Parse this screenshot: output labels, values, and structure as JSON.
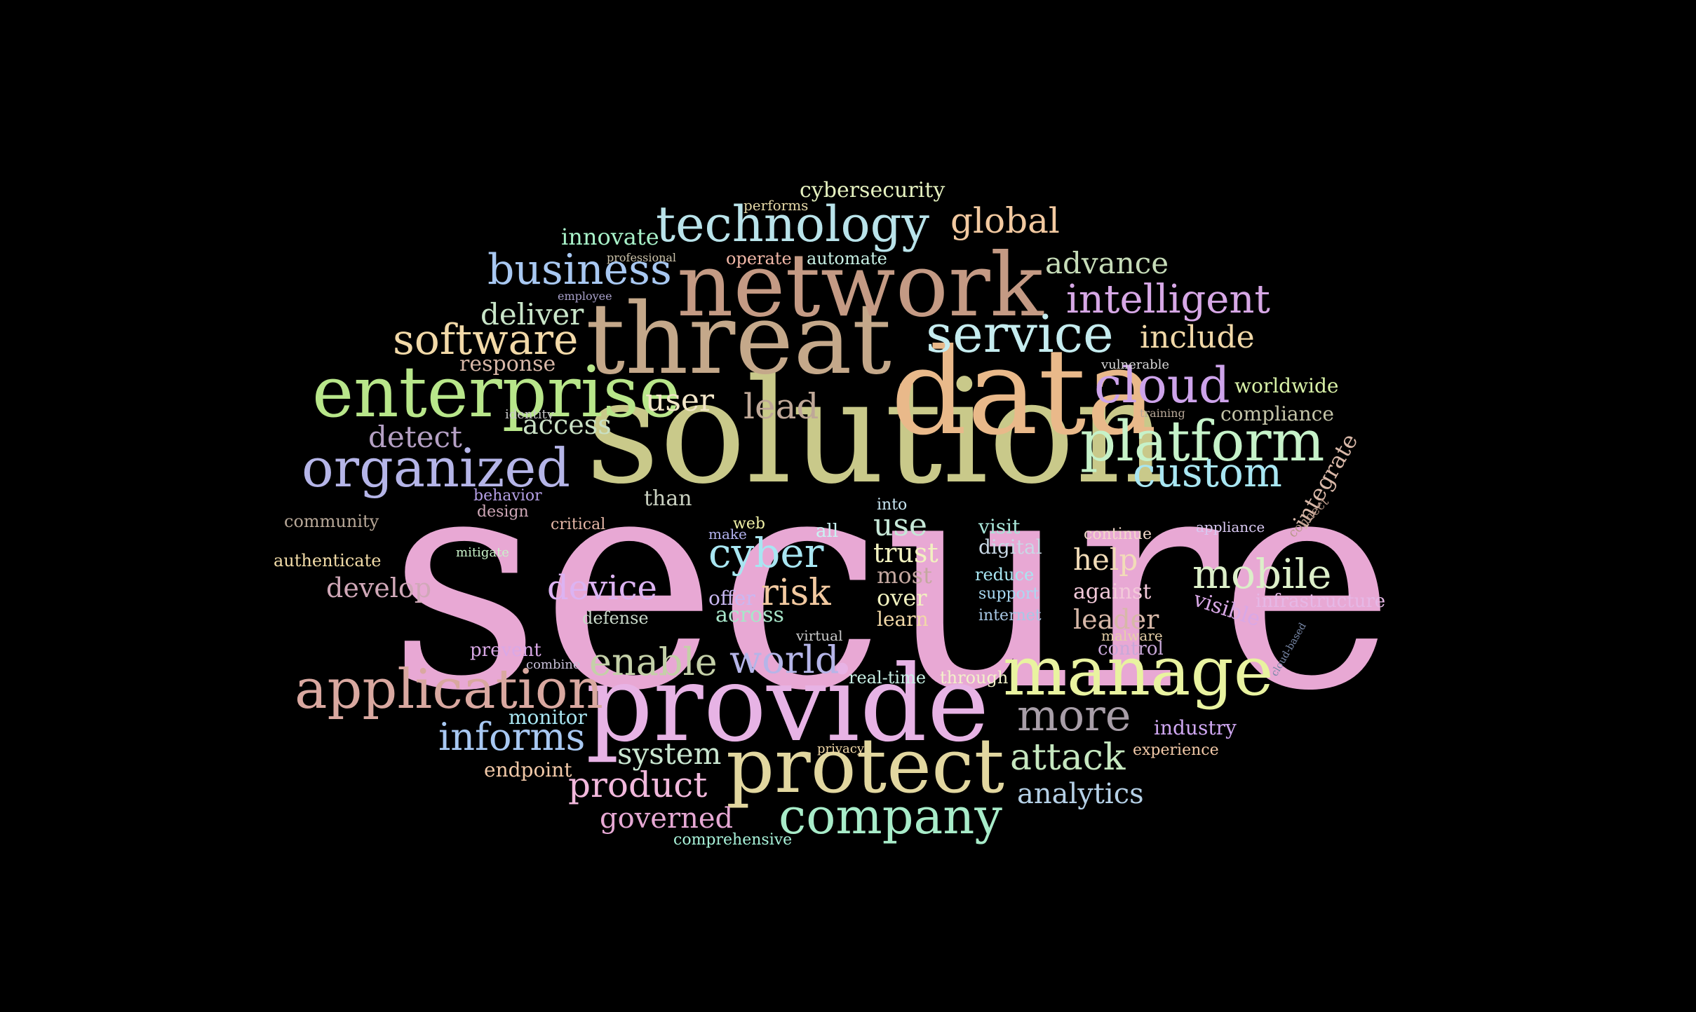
{
  "words": [
    {
      "text": "secure",
      "color": "#e8a8d4"
    },
    {
      "text": "solution",
      "color": "#c9c98a"
    },
    {
      "text": "provide",
      "color": "#e7b3e5"
    },
    {
      "text": "data",
      "color": "#e9b98a"
    },
    {
      "text": "threat",
      "color": "#c4a88a"
    },
    {
      "text": "network",
      "color": "#c49a84"
    },
    {
      "text": "protect",
      "color": "#e2d7a0"
    },
    {
      "text": "enterprise",
      "color": "#b8e68a"
    },
    {
      "text": "manage",
      "color": "#e9f3a0"
    },
    {
      "text": "platform",
      "color": "#c6f2c9"
    },
    {
      "text": "organized",
      "color": "#b5b5e8"
    },
    {
      "text": "application",
      "color": "#d9a8a0"
    },
    {
      "text": "technology",
      "color": "#b9e3ea"
    },
    {
      "text": "service",
      "color": "#c5ecef"
    },
    {
      "text": "company",
      "color": "#a8ecc9"
    },
    {
      "text": "cloud",
      "color": "#cda3ea"
    },
    {
      "text": "software",
      "color": "#f2d9a8"
    },
    {
      "text": "business",
      "color": "#a8c8f2"
    },
    {
      "text": "custom",
      "color": "#a8e6f2"
    },
    {
      "text": "mobile",
      "color": "#dcefc9"
    },
    {
      "text": "intelligent",
      "color": "#d7a8e6"
    },
    {
      "text": "more",
      "color": "#a89ea8"
    },
    {
      "text": "cyber",
      "color": "#a8e6f2"
    },
    {
      "text": "informs",
      "color": "#a8c8f2"
    },
    {
      "text": "world",
      "color": "#b5b5e8"
    },
    {
      "text": "enable",
      "color": "#c4d0a8"
    },
    {
      "text": "product",
      "color": "#f2b8dc"
    },
    {
      "text": "attack",
      "color": "#c6e8c0"
    },
    {
      "text": "global",
      "color": "#f2c9a0"
    },
    {
      "text": "risk",
      "color": "#f2c9a0"
    },
    {
      "text": "device",
      "color": "#dcb3f2"
    },
    {
      "text": "lead",
      "color": "#bfa898"
    },
    {
      "text": "advance",
      "color": "#c6dcb8"
    },
    {
      "text": "include",
      "color": "#f2d9a8"
    },
    {
      "text": "detect",
      "color": "#b5a0c4"
    },
    {
      "text": "deliver",
      "color": "#c9e6c9"
    },
    {
      "text": "user",
      "color": "#f2e6c9"
    },
    {
      "text": "access",
      "color": "#c9e0c4"
    },
    {
      "text": "help",
      "color": "#f2dcb8"
    },
    {
      "text": "use",
      "color": "#c6e8d8"
    },
    {
      "text": "trust",
      "color": "#f2f2c0"
    },
    {
      "text": "system",
      "color": "#c9e6d0"
    },
    {
      "text": "governed",
      "color": "#e6a8d4"
    },
    {
      "text": "analytics",
      "color": "#b5d0e6"
    },
    {
      "text": "develop",
      "color": "#d0a8b8"
    },
    {
      "text": "leader",
      "color": "#d7b8a8"
    },
    {
      "text": "innovate",
      "color": "#a8f2c9"
    },
    {
      "text": "cybersecurity",
      "color": "#e6f2c0"
    },
    {
      "text": "worldwide",
      "color": "#d9f2a8"
    },
    {
      "text": "compliance",
      "color": "#c4c4a8"
    },
    {
      "text": "integrate",
      "color": "#d9b8a8"
    },
    {
      "text": "infrastructure",
      "color": "#e6b8e6"
    },
    {
      "text": "visible",
      "color": "#d9a8e6"
    },
    {
      "text": "against",
      "color": "#f2c9d9"
    },
    {
      "text": "endpoint",
      "color": "#f2c9a8"
    },
    {
      "text": "monitor",
      "color": "#a8e6f2"
    },
    {
      "text": "response",
      "color": "#d9b8a8"
    },
    {
      "text": "most",
      "color": "#c4a8a0"
    },
    {
      "text": "over",
      "color": "#f2f2c0"
    },
    {
      "text": "across",
      "color": "#a8e6c9"
    },
    {
      "text": "authenticate",
      "color": "#f2dca8"
    },
    {
      "text": "community",
      "color": "#b8a898"
    },
    {
      "text": "behavior",
      "color": "#b5a0e6"
    },
    {
      "text": "design",
      "color": "#d0a8b8"
    },
    {
      "text": "critical",
      "color": "#e6b8a8"
    },
    {
      "text": "digital",
      "color": "#c9d9e6"
    },
    {
      "text": "visit",
      "color": "#a8e6d9"
    },
    {
      "text": "reduce",
      "color": "#a8e6f2"
    },
    {
      "text": "support",
      "color": "#a8d9f2"
    },
    {
      "text": "internet",
      "color": "#a8c8e6"
    },
    {
      "text": "control",
      "color": "#c9a8d9"
    },
    {
      "text": "malware",
      "color": "#e6d0a8"
    },
    {
      "text": "industry",
      "color": "#d0a8f2"
    },
    {
      "text": "experience",
      "color": "#f2c9a8"
    },
    {
      "text": "prevent",
      "color": "#d9a8e6"
    },
    {
      "text": "defense",
      "color": "#c9d9c9"
    },
    {
      "text": "learn",
      "color": "#f2d9a8"
    },
    {
      "text": "through",
      "color": "#f2f2c9"
    },
    {
      "text": "real-time",
      "color": "#c9f2e6"
    },
    {
      "text": "comprehensive",
      "color": "#a8f2d9"
    },
    {
      "text": "operate",
      "color": "#f2b8a8"
    },
    {
      "text": "automate",
      "color": "#c9f2e6"
    },
    {
      "text": "than",
      "color": "#c9d0c0"
    },
    {
      "text": "offer",
      "color": "#c9b8f2"
    },
    {
      "text": "into",
      "color": "#c9e6f2"
    },
    {
      "text": "all",
      "color": "#c9f2f2"
    },
    {
      "text": "web",
      "color": "#f2f2a8"
    },
    {
      "text": "make",
      "color": "#b5b5f2"
    },
    {
      "text": "identity",
      "color": "#c9c9c9"
    },
    {
      "text": "mitigate",
      "color": "#c9f2c9"
    },
    {
      "text": "combine",
      "color": "#c9c0d9"
    },
    {
      "text": "continue",
      "color": "#f2d9c9"
    },
    {
      "text": "appliance",
      "color": "#d9c9f2"
    },
    {
      "text": "performs",
      "color": "#e6d9a8"
    },
    {
      "text": "privacy",
      "color": "#f2d9a8"
    },
    {
      "text": "virtual",
      "color": "#c9c9c9"
    },
    {
      "text": "employee",
      "color": "#a8a0c9"
    },
    {
      "text": "professional",
      "color": "#c9c0a8"
    },
    {
      "text": "vulnerable",
      "color": "#d9d9d9"
    },
    {
      "text": "training",
      "color": "#b8a898"
    },
    {
      "text": "connect",
      "color": "#b89888"
    },
    {
      "text": "cloud-based",
      "color": "#7888a8"
    }
  ]
}
